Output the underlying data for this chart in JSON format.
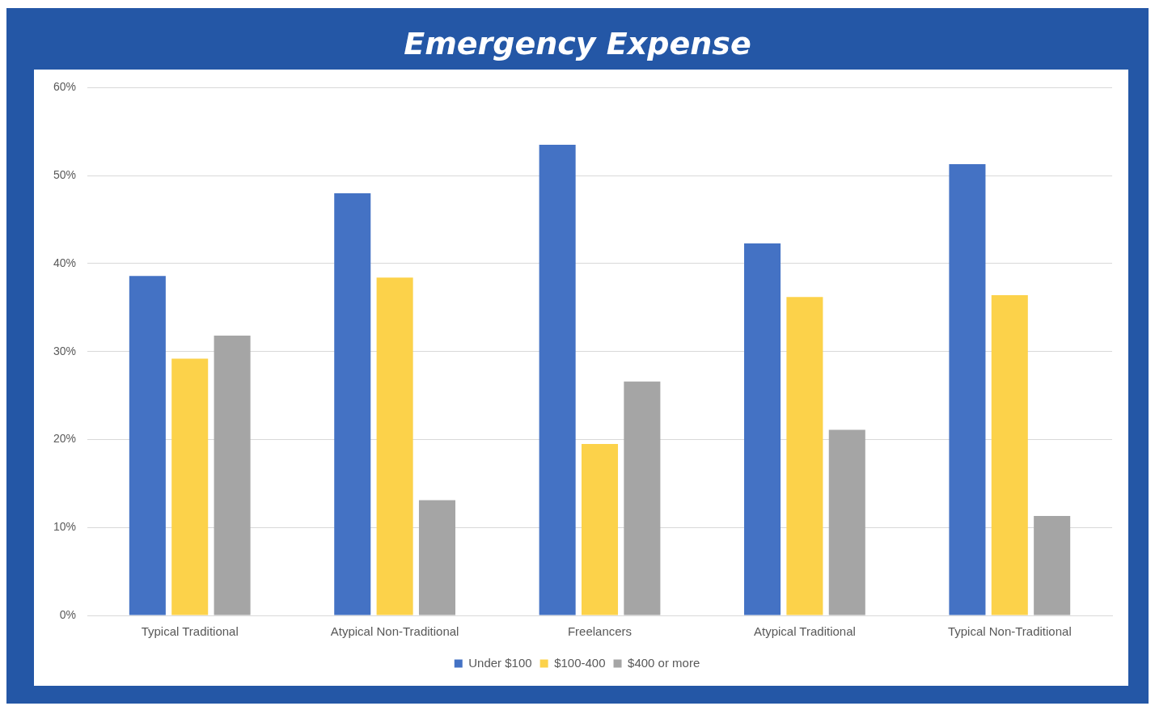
{
  "chart_data": {
    "type": "bar",
    "title": "Emergency Expense",
    "categories": [
      "Typical Traditional",
      "Atypical Non-Traditional",
      "Freelancers",
      "Atypical Traditional",
      "Typical Non-Traditional"
    ],
    "series": [
      {
        "name": "Under $100",
        "color": "#4472c4",
        "values": [
          38.6,
          48.0,
          53.5,
          42.3,
          51.3
        ]
      },
      {
        "name": "$100-400",
        "color": "#fcd24a",
        "values": [
          29.2,
          38.4,
          19.5,
          36.2,
          36.4
        ]
      },
      {
        "name": "$400 or more",
        "color": "#a5a5a5",
        "values": [
          31.8,
          13.1,
          26.6,
          21.1,
          11.3
        ]
      }
    ],
    "ylim": [
      0,
      60
    ],
    "yticks": [
      {
        "value": 0,
        "label": "0%"
      },
      {
        "value": 10,
        "label": "10%"
      },
      {
        "value": 20,
        "label": "20%"
      },
      {
        "value": 30,
        "label": "30%"
      },
      {
        "value": 40,
        "label": "40%"
      },
      {
        "value": 50,
        "label": "50%"
      },
      {
        "value": 60,
        "label": "60%"
      }
    ],
    "grid": "y",
    "legend": "bottom"
  }
}
